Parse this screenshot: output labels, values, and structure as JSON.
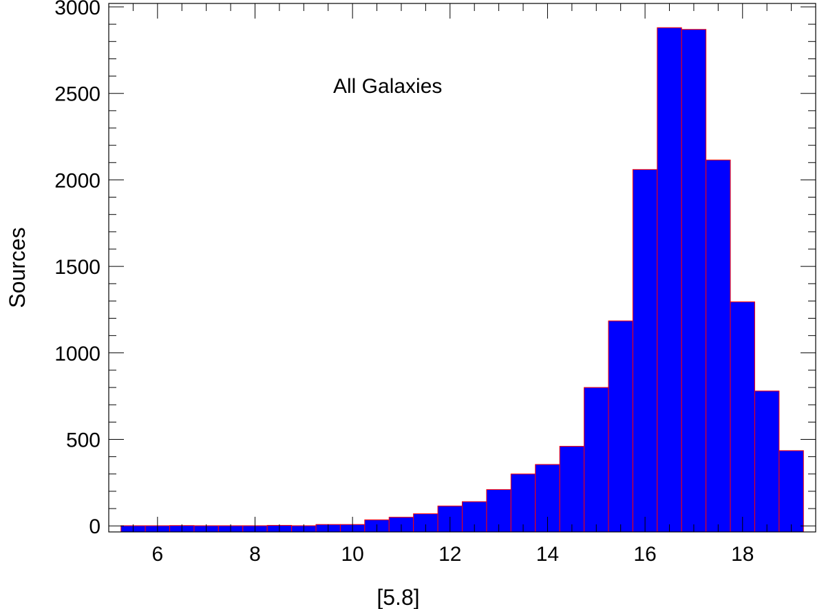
{
  "chart_data": {
    "type": "bar",
    "title": "",
    "annotation": "All Galaxies",
    "xlabel": "[5.8]",
    "ylabel": "Sources",
    "xlim": [
      5.0,
      19.5
    ],
    "ylim": [
      -35,
      3020
    ],
    "xticks": [
      6,
      8,
      10,
      12,
      14,
      16,
      18
    ],
    "yticks": [
      0,
      500,
      1000,
      1500,
      2000,
      2500,
      3000
    ],
    "bin_width": 0.5,
    "grid": false,
    "legend": "none",
    "bar_color": "#0000ff",
    "bar_edge_color": "#ff0000",
    "series": [
      {
        "bin_starts": [
          5.25,
          5.75,
          6.25,
          6.75,
          7.25,
          7.75,
          8.25,
          8.75,
          9.25,
          9.75,
          10.25,
          10.75,
          11.25,
          11.75,
          12.25,
          12.75,
          13.25,
          13.75,
          14.25,
          14.75,
          15.25,
          15.75,
          16.25,
          16.75,
          17.25,
          17.75,
          18.25,
          18.75
        ],
        "values": [
          1,
          1,
          2,
          1,
          1,
          1,
          3,
          1,
          8,
          8,
          35,
          50,
          70,
          115,
          140,
          210,
          300,
          355,
          460,
          800,
          1185,
          2060,
          2880,
          2870,
          2115,
          1295,
          780,
          435
        ]
      }
    ]
  }
}
